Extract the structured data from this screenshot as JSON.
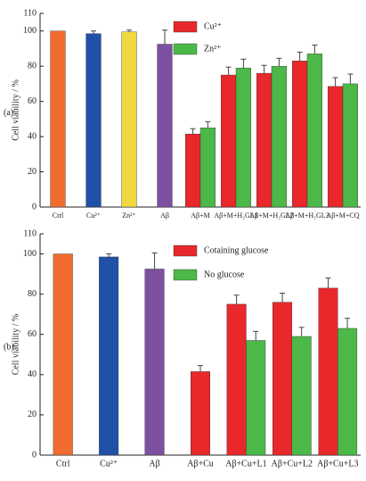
{
  "chart_data": [
    {
      "type": "bar",
      "panel_label": "(a)",
      "y_label": "Cell viability / %",
      "categories": [
        "Ctrl",
        "Cu²⁺",
        "Zn²⁺",
        "Aβ",
        "Aβ+M",
        "Aβ+M+H₂GL1",
        "Aβ+M+H₂GL2",
        "Aβ+M+H₂GL3",
        "Aβ+M+CQ"
      ],
      "values": [
        100,
        98.5,
        99.5,
        92.5,
        null,
        null,
        null,
        null,
        null
      ],
      "errors": [
        0,
        1.5,
        1,
        8,
        null,
        null,
        null,
        null,
        null
      ],
      "colors": [
        "#f26b2e",
        "#2050a8",
        "#f0d840",
        "#7d4fa0",
        null,
        null,
        null,
        null,
        null
      ],
      "series": [
        {
          "name": "Cu²⁺",
          "color": "#e8282b",
          "values": [
            null,
            null,
            null,
            null,
            41.5,
            75,
            76,
            83,
            68.5
          ],
          "errors": [
            null,
            null,
            null,
            null,
            3,
            4.5,
            4.5,
            5,
            5
          ]
        },
        {
          "name": "Zn²⁺",
          "color": "#4cb848",
          "values": [
            null,
            null,
            null,
            null,
            45,
            79,
            80,
            87,
            70
          ],
          "errors": [
            null,
            null,
            null,
            null,
            3.5,
            5,
            4.5,
            5,
            5.5
          ]
        }
      ],
      "ylim": [
        0,
        110
      ],
      "yticks": [
        0,
        20,
        40,
        60,
        80,
        100,
        110
      ],
      "legend": "top"
    },
    {
      "type": "bar",
      "panel_label": "(b)",
      "y_label": "Cell viability / %",
      "categories": [
        "Ctrl",
        "Cu²⁺",
        "Aβ",
        "Aβ+Cu",
        "Aβ+Cu+L1",
        "Aβ+Cu+L2",
        "Aβ+Cu+L3"
      ],
      "values": [
        100,
        98.5,
        92.5,
        41.5,
        null,
        null,
        null
      ],
      "errors": [
        0,
        1.5,
        8,
        3,
        null,
        null,
        null
      ],
      "colors": [
        "#f26b2e",
        "#2050a8",
        "#7d4fa0",
        "#e8282b",
        null,
        null,
        null
      ],
      "series": [
        {
          "name": "Cotaining glucose",
          "color": "#e8282b",
          "values": [
            null,
            null,
            null,
            null,
            75,
            76,
            83
          ],
          "errors": [
            null,
            null,
            null,
            null,
            4.5,
            4.5,
            5
          ]
        },
        {
          "name": "No glucose",
          "color": "#4cb848",
          "values": [
            null,
            null,
            null,
            null,
            57,
            59,
            63
          ],
          "errors": [
            null,
            null,
            null,
            null,
            4.5,
            4.5,
            5
          ]
        }
      ],
      "ylim": [
        0,
        110
      ],
      "yticks": [
        0,
        20,
        40,
        60,
        80,
        100,
        110
      ],
      "legend": "top"
    }
  ]
}
